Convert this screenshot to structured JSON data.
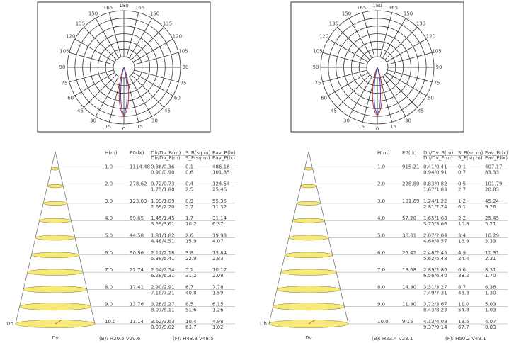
{
  "panels": [
    {
      "polar": {
        "angle_labels": [
          "0",
          "15",
          "30",
          "45",
          "60",
          "75",
          "90",
          "105",
          "120",
          "135",
          "150",
          "165",
          "180"
        ]
      },
      "table": {
        "headers": [
          "H(m)",
          "E0(lx)",
          "Dh/Dv_B(m)",
          "Dh/Dv_F(m)",
          "S_B(sq.m)",
          "S_F(sq.m)",
          "Eav_B(lx)",
          "Eav_F(lx)"
        ],
        "rows": [
          [
            "1.0",
            "1114.48",
            "0.36/0.36",
            "0.90/0.90",
            "0.1",
            "0.6",
            "486.16",
            "101.85"
          ],
          [
            "2.0",
            "278.62",
            "0.72/0.73",
            "1.75/1.80",
            "0.4",
            "2.5",
            "124.54",
            "25.46"
          ],
          [
            "3.0",
            "123.83",
            "1.09/1.09",
            "2.69/2.70",
            "0.9",
            "5.7",
            "55.35",
            "11.32"
          ],
          [
            "4.0",
            "69.65",
            "1.45/1.45",
            "3.59/3.61",
            "1.7",
            "10.2",
            "31.14",
            "6.37"
          ],
          [
            "5.0",
            "44.58",
            "1.81/1.82",
            "4.48/4.51",
            "2.6",
            "15.9",
            "19.93",
            "4.07"
          ],
          [
            "6.0",
            "30.96",
            "2.17/2.18",
            "5.38/5.41",
            "3.8",
            "22.9",
            "13.84",
            "2.83"
          ],
          [
            "7.0",
            "22.74",
            "2.54/2.54",
            "6.28/6.31",
            "5.1",
            "31.2",
            "10.17",
            "2.08"
          ],
          [
            "8.0",
            "17.41",
            "2.90/2.91",
            "7.18/7.21",
            "6.7",
            "40.8",
            "7.78",
            "1.59"
          ],
          [
            "9.0",
            "13.76",
            "3.26/3.27",
            "8.07/8.11",
            "8.5",
            "51.6",
            "6.15",
            "1.26"
          ],
          [
            "10.0",
            "11.14",
            "3.62/3.63",
            "8.97/9.02",
            "10.4",
            "63.7",
            "4.98",
            "1.02"
          ]
        ]
      },
      "footer_b": "(B): H20.5 V20.6",
      "footer_f": "(F): H48.3 V48.5",
      "dh_label": "Dh",
      "dv_label": "Dv"
    },
    {
      "polar": {
        "angle_labels": [
          "0",
          "15",
          "30",
          "45",
          "60",
          "75",
          "90",
          "105",
          "120",
          "135",
          "150",
          "165",
          "180"
        ]
      },
      "table": {
        "headers": [
          "H(m)",
          "E0(lx)",
          "Dh/Dv_B(m)",
          "Dh/Dv_F(m)",
          "S_B(sq.m)",
          "S_F(sq.m)",
          "Eav_B(lx)",
          "Eav_F(lx)"
        ],
        "rows": [
          [
            "1.0",
            "915.21",
            "0.41/0.41",
            "0.94/0.91",
            "0.1",
            "0.7",
            "407.17",
            "83.33"
          ],
          [
            "2.0",
            "228.80",
            "0.83/0.82",
            "1.87/1.83",
            "0.5",
            "2.7",
            "101.79",
            "20.83"
          ],
          [
            "3.0",
            "101.69",
            "1.24/1.22",
            "2.81/2.74",
            "1.2",
            "6.1",
            "45.24",
            "9.26"
          ],
          [
            "4.0",
            "57.20",
            "1.65/1.63",
            "3.75/3.66",
            "2.2",
            "10.8",
            "25.45",
            "5.21"
          ],
          [
            "5.0",
            "36.61",
            "2.07/2.04",
            "4.68/4.57",
            "3.4",
            "16.9",
            "16.29",
            "3.33"
          ],
          [
            "6.0",
            "25.42",
            "2.48/2.45",
            "5.62/5.48",
            "4.9",
            "24.4",
            "11.31",
            "2.31"
          ],
          [
            "7.0",
            "18.68",
            "2.89/2.86",
            "6.56/6.40",
            "6.6",
            "33.2",
            "8.31",
            "1.70"
          ],
          [
            "8.0",
            "14.30",
            "3.31/3.27",
            "7.49/7.31",
            "8.7",
            "43.3",
            "6.36",
            "1.30"
          ],
          [
            "9.0",
            "11.30",
            "3.72/3.67",
            "8.43/8.23",
            "11.0",
            "54.8",
            "5.03",
            "1.03"
          ],
          [
            "10.0",
            "9.15",
            "4.13/4.08",
            "9.37/9.14",
            "13.5",
            "67.7",
            "4.07",
            "0.83"
          ]
        ]
      },
      "footer_b": "(B): H23.4 V23.1",
      "footer_f": "(F): H50.2 V49.1",
      "dh_label": "Dh",
      "dv_label": "Dv"
    }
  ]
}
